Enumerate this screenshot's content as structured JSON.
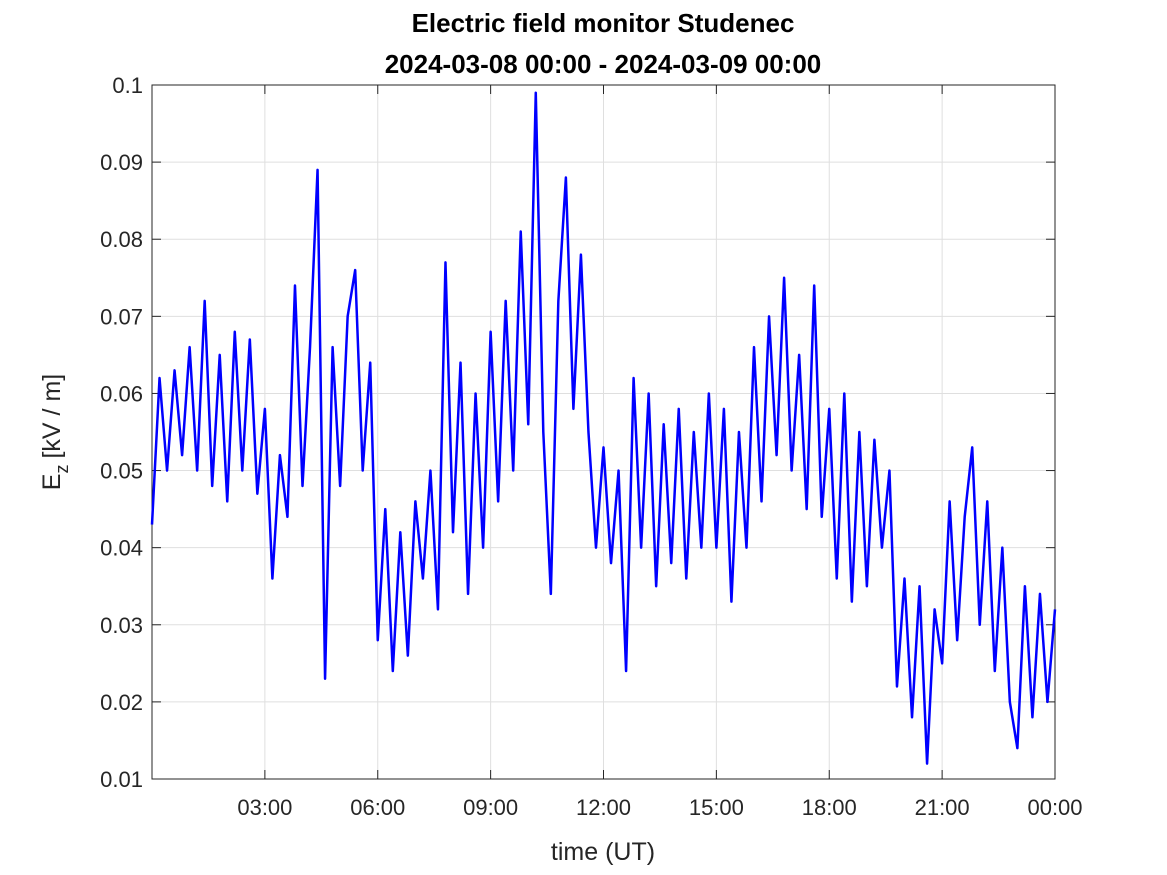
{
  "chart_data": {
    "type": "line",
    "title": "Electric field monitor Studenec",
    "subtitle": "2024-03-08 00:00 - 2024-03-09 00:00",
    "xlabel": "time (UT)",
    "ylabel": {
      "base": "E",
      "sub": "z",
      "rest": "[kV / m]"
    },
    "x": [
      0,
      0.2,
      0.4,
      0.6,
      0.8,
      1,
      1.2,
      1.4,
      1.6,
      1.8,
      2,
      2.2,
      2.4,
      2.6,
      2.8,
      3,
      3.2,
      3.4,
      3.6,
      3.8,
      4,
      4.2,
      4.4,
      4.6,
      4.8,
      5,
      5.2,
      5.4,
      5.6,
      5.8,
      6,
      6.2,
      6.4,
      6.6,
      6.8,
      7,
      7.2,
      7.4,
      7.6,
      7.8,
      8,
      8.2,
      8.4,
      8.6,
      8.8,
      9,
      9.2,
      9.4,
      9.6,
      9.8,
      10,
      10.2,
      10.4,
      10.6,
      10.8,
      11,
      11.2,
      11.4,
      11.6,
      11.8,
      12,
      12.2,
      12.4,
      12.6,
      12.8,
      13,
      13.2,
      13.4,
      13.6,
      13.8,
      14,
      14.2,
      14.4,
      14.6,
      14.8,
      15,
      15.2,
      15.4,
      15.6,
      15.8,
      16,
      16.2,
      16.4,
      16.6,
      16.8,
      17,
      17.2,
      17.4,
      17.6,
      17.8,
      18,
      18.2,
      18.4,
      18.6,
      18.8,
      19,
      19.2,
      19.4,
      19.6,
      19.8,
      20,
      20.2,
      20.4,
      20.6,
      20.8,
      21,
      21.2,
      21.4,
      21.6,
      21.8,
      22,
      22.2,
      22.4,
      22.6,
      22.8,
      23,
      23.2,
      23.4,
      23.6,
      23.8,
      24
    ],
    "series": [
      {
        "name": "Ez",
        "color": "#0000ff",
        "values": [
          0.043,
          0.062,
          0.05,
          0.063,
          0.052,
          0.066,
          0.05,
          0.072,
          0.048,
          0.065,
          0.046,
          0.068,
          0.05,
          0.067,
          0.047,
          0.058,
          0.036,
          0.052,
          0.044,
          0.074,
          0.048,
          0.066,
          0.089,
          0.023,
          0.066,
          0.048,
          0.07,
          0.076,
          0.05,
          0.064,
          0.028,
          0.045,
          0.024,
          0.042,
          0.026,
          0.046,
          0.036,
          0.05,
          0.032,
          0.077,
          0.042,
          0.064,
          0.034,
          0.06,
          0.04,
          0.068,
          0.046,
          0.072,
          0.05,
          0.081,
          0.056,
          0.099,
          0.055,
          0.034,
          0.072,
          0.088,
          0.058,
          0.078,
          0.055,
          0.04,
          0.053,
          0.038,
          0.05,
          0.024,
          0.062,
          0.04,
          0.06,
          0.035,
          0.056,
          0.038,
          0.058,
          0.036,
          0.055,
          0.04,
          0.06,
          0.04,
          0.058,
          0.033,
          0.055,
          0.04,
          0.066,
          0.046,
          0.07,
          0.052,
          0.075,
          0.05,
          0.065,
          0.045,
          0.074,
          0.044,
          0.058,
          0.036,
          0.06,
          0.033,
          0.055,
          0.035,
          0.054,
          0.04,
          0.05,
          0.022,
          0.036,
          0.018,
          0.035,
          0.012,
          0.032,
          0.025,
          0.046,
          0.028,
          0.044,
          0.053,
          0.03,
          0.046,
          0.024,
          0.04,
          0.02,
          0.014,
          0.035,
          0.018,
          0.034,
          0.02,
          0.032
        ]
      }
    ],
    "xlim": [
      0,
      24
    ],
    "xticks": [
      {
        "value": 3,
        "label": "03:00"
      },
      {
        "value": 6,
        "label": "06:00"
      },
      {
        "value": 9,
        "label": "09:00"
      },
      {
        "value": 12,
        "label": "12:00"
      },
      {
        "value": 15,
        "label": "15:00"
      },
      {
        "value": 18,
        "label": "18:00"
      },
      {
        "value": 21,
        "label": "21:00"
      },
      {
        "value": 24,
        "label": "00:00"
      }
    ],
    "ylim": [
      0.01,
      0.1
    ],
    "yticks": [
      0.01,
      0.02,
      0.03,
      0.04,
      0.05,
      0.06,
      0.07,
      0.08,
      0.09,
      0.1
    ],
    "grid": true
  }
}
